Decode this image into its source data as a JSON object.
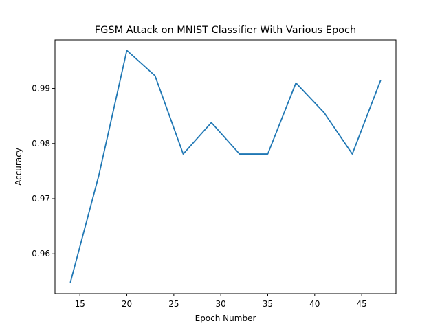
{
  "chart_data": {
    "type": "line",
    "title": "FGSM Attack on MNIST Classifier With Various Epoch",
    "xlabel": "Epoch Number",
    "ylabel": "Accuracy",
    "xlim": [
      12.35,
      48.65
    ],
    "ylim": [
      0.9528,
      0.9988
    ],
    "xticks": [
      15,
      20,
      25,
      30,
      35,
      40,
      45
    ],
    "xtick_labels": [
      "15",
      "20",
      "25",
      "30",
      "35",
      "40",
      "45"
    ],
    "yticks": [
      0.96,
      0.97,
      0.98,
      0.99
    ],
    "ytick_labels": [
      "0.96",
      "0.97",
      "0.98",
      "0.99"
    ],
    "grid": false,
    "legend": "none",
    "series": [
      {
        "color": "#1f77b4",
        "x": [
          14,
          17,
          20,
          23,
          26,
          29,
          32,
          35,
          38,
          41,
          44,
          47
        ],
        "y": [
          0.9549,
          0.9741,
          0.9969,
          0.9923,
          0.9781,
          0.9838,
          0.9781,
          0.9781,
          0.991,
          0.9856,
          0.9781,
          0.9914
        ]
      }
    ]
  }
}
